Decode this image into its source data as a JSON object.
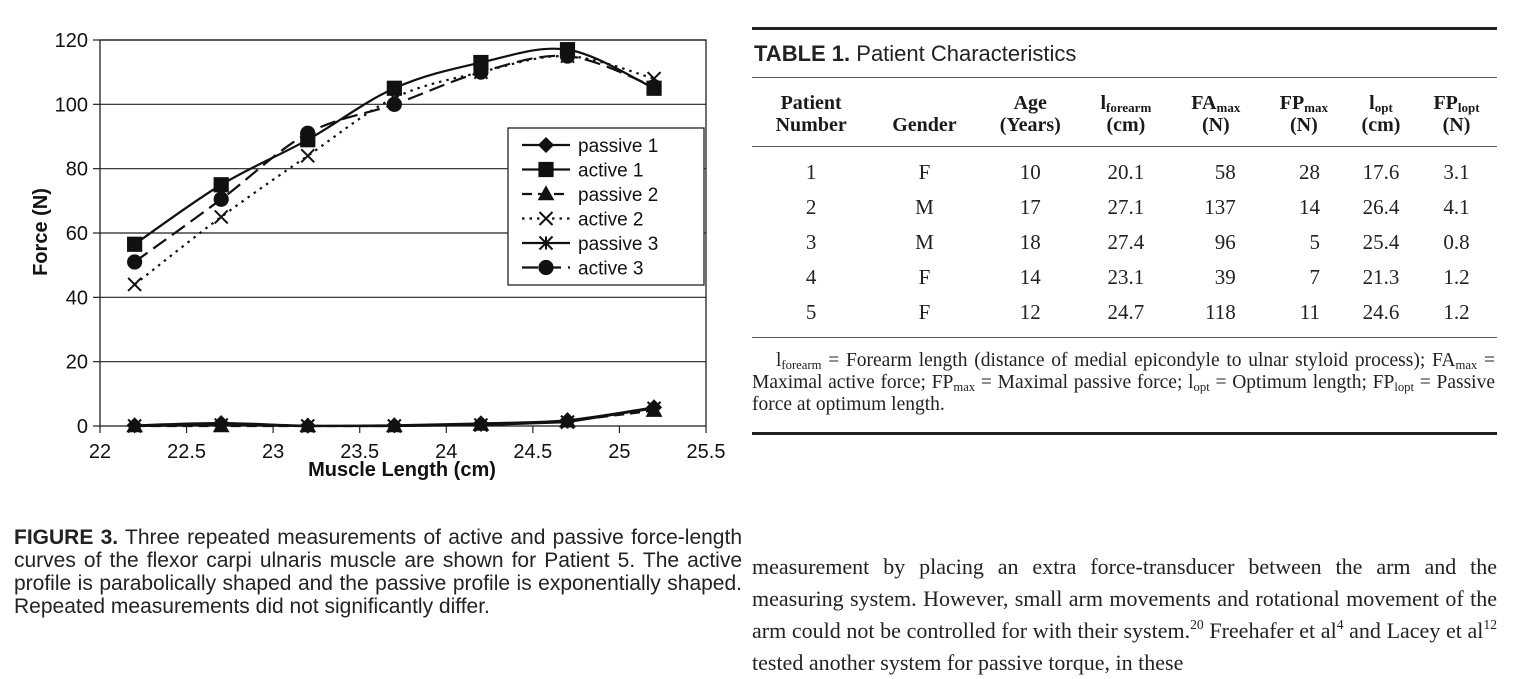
{
  "chart_data": {
    "type": "line",
    "xlabel": "Muscle Length (cm)",
    "ylabel": "Force (N)",
    "xlim": [
      22,
      25.5
    ],
    "ylim": [
      0,
      120
    ],
    "xticks": [
      22,
      22.5,
      23,
      23.5,
      24,
      24.5,
      25,
      25.5
    ],
    "yticks": [
      0,
      20,
      40,
      60,
      80,
      100,
      120
    ],
    "grid": "horizontal",
    "legend_position": "right-middle",
    "x": [
      22.2,
      22.7,
      23.2,
      23.7,
      24.2,
      24.7,
      25.2
    ],
    "series": [
      {
        "name": "passive 1",
        "marker": "diamond",
        "dash": "solid",
        "smooth": true,
        "values": [
          0.2,
          0.9,
          0.1,
          0.2,
          0.8,
          1.8,
          5.8
        ]
      },
      {
        "name": "active 1",
        "marker": "square",
        "dash": "solid",
        "smooth": true,
        "values": [
          56.5,
          75,
          89,
          105,
          113,
          117,
          105
        ]
      },
      {
        "name": "passive 2",
        "marker": "triangle",
        "dash": "dash",
        "smooth": false,
        "values": [
          0,
          0,
          0,
          0,
          0.5,
          1.5,
          4.8
        ]
      },
      {
        "name": "active 2",
        "marker": "x",
        "dash": "dot",
        "smooth": true,
        "values": [
          44,
          65,
          84,
          102,
          110,
          115,
          108
        ]
      },
      {
        "name": "passive 3",
        "marker": "star",
        "dash": "solid",
        "smooth": false,
        "values": [
          0,
          0.3,
          0,
          0,
          0.3,
          1.2,
          5.5
        ]
      },
      {
        "name": "active 3",
        "marker": "circle",
        "dash": "longdash",
        "smooth": true,
        "values": [
          51,
          70.5,
          91,
          100,
          110,
          115,
          105.5
        ]
      }
    ]
  },
  "figure_caption": {
    "label": "FIGURE 3.",
    "text": " Three repeated measurements of active and passive force-length curves of the flexor carpi ulnaris muscle are shown for Patient 5. The active profile is parabolically shaped and the passive profile is exponentially shaped. Repeated measurements did not significantly differ."
  },
  "table": {
    "label": "TABLE 1.",
    "title": " Patient Characteristics",
    "headers": {
      "patient_line1": "Patient",
      "patient_line2": "Number",
      "gender": "Gender",
      "age_line1": "Age",
      "age_line2": "(Years)",
      "forearm_base": "l",
      "forearm_sub": "forearm",
      "forearm_unit": "(cm)",
      "fa_base": "FA",
      "fa_sub": "max",
      "fa_unit": "(N)",
      "fp_base": "FP",
      "fp_sub": "max",
      "fp_unit": "(N)",
      "lopt_base": "l",
      "lopt_sub": "opt",
      "lopt_unit": "(cm)",
      "fplopt_base": "FP",
      "fplopt_sub": "lopt",
      "fplopt_unit": "(N)"
    },
    "rows": [
      {
        "num": "1",
        "gender": "F",
        "age": "10",
        "lforearm": "20.1",
        "famax": "58",
        "fpmax": "28",
        "lopt": "17.6",
        "fplopt": "3.1"
      },
      {
        "num": "2",
        "gender": "M",
        "age": "17",
        "lforearm": "27.1",
        "famax": "137",
        "fpmax": "14",
        "lopt": "26.4",
        "fplopt": "4.1"
      },
      {
        "num": "3",
        "gender": "M",
        "age": "18",
        "lforearm": "27.4",
        "famax": "96",
        "fpmax": "5",
        "lopt": "25.4",
        "fplopt": "0.8"
      },
      {
        "num": "4",
        "gender": "F",
        "age": "14",
        "lforearm": "23.1",
        "famax": "39",
        "fpmax": "7",
        "lopt": "21.3",
        "fplopt": "1.2"
      },
      {
        "num": "5",
        "gender": "F",
        "age": "12",
        "lforearm": "24.7",
        "famax": "118",
        "fpmax": "11",
        "lopt": "24.6",
        "fplopt": "1.2"
      }
    ],
    "footnote": {
      "l1": "l",
      "s1": "forearm",
      "t1": " = Forearm length (distance of medial epicondyle to ulnar styloid process); FA",
      "s2": "max",
      "t2": " = Maximal active force; FP",
      "s3": "max",
      "t3": " = Maximal passive force; l",
      "s4": "opt",
      "t4": " = Optimum length; FP",
      "s5": "lopt",
      "t5": " = Passive force at optimum length."
    }
  },
  "body_text": {
    "p1": "measurement by placing an extra force-transducer between the arm and the measuring system. However, small arm movements and rotational movement of the arm could not be controlled for with their system.",
    "ref1": "20",
    "p2": " Freehafer et al",
    "ref2": "4",
    "p3": " and Lacey et al",
    "ref3": "12",
    "p4": " tested another system for passive torque, in these"
  }
}
